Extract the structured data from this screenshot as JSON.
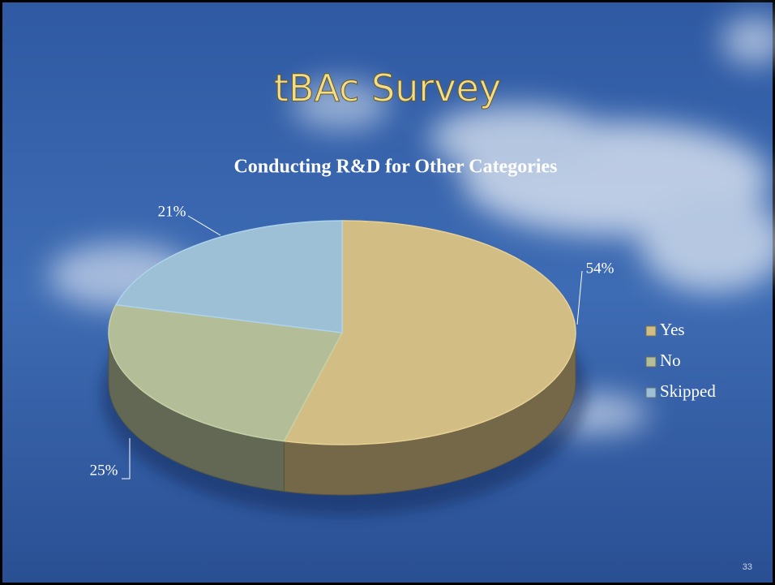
{
  "slide_title": "tBAc Survey",
  "page_number": 33,
  "chart_data": {
    "type": "pie",
    "title": "Conducting R&D  for Other Categories",
    "categories": [
      "Yes",
      "No",
      "Skipped"
    ],
    "values": [
      54,
      25,
      21
    ],
    "value_labels": [
      "54%",
      "25%",
      "21%"
    ],
    "colors": [
      "#d2bd85",
      "#b3bd98",
      "#9dc0d6"
    ],
    "legend": "right"
  }
}
